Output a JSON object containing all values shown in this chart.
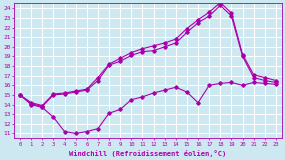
{
  "xlabel": "Windchill (Refroidissement éolien,°C)",
  "bg_color": "#cde8f0",
  "grid_color": "#ffffff",
  "line_color": "#aa00aa",
  "xlim": [
    -0.5,
    23.5
  ],
  "ylim": [
    10.5,
    24.5
  ],
  "xticks": [
    0,
    1,
    2,
    3,
    4,
    5,
    6,
    7,
    8,
    9,
    10,
    11,
    12,
    13,
    14,
    15,
    16,
    17,
    18,
    19,
    20,
    21,
    22,
    23
  ],
  "yticks": [
    11,
    12,
    13,
    14,
    15,
    16,
    17,
    18,
    19,
    20,
    21,
    22,
    23,
    24
  ],
  "line1_x": [
    0,
    1,
    2,
    3,
    4,
    5,
    6,
    7,
    8,
    9,
    10,
    11,
    12,
    13,
    14,
    15,
    16,
    17,
    18,
    19,
    20,
    21,
    22,
    23
  ],
  "line1_y": [
    15.0,
    14.0,
    13.7,
    12.7,
    11.2,
    11.0,
    11.2,
    11.5,
    13.1,
    13.5,
    14.5,
    14.8,
    15.2,
    15.5,
    15.8,
    15.3,
    14.2,
    16.0,
    16.2,
    16.3,
    16.0,
    16.3,
    16.2,
    16.1
  ],
  "line2_x": [
    0,
    1,
    2,
    3,
    4,
    5,
    6,
    7,
    8,
    9,
    10,
    11,
    12,
    13,
    14,
    15,
    16,
    17,
    18,
    19,
    20,
    21,
    22,
    23
  ],
  "line2_y": [
    15.0,
    14.1,
    13.8,
    15.0,
    15.1,
    15.3,
    15.5,
    16.5,
    18.1,
    18.5,
    19.1,
    19.5,
    19.6,
    20.0,
    20.4,
    21.5,
    22.5,
    23.2,
    24.3,
    23.2,
    19.0,
    16.8,
    16.5,
    16.3
  ],
  "line3_x": [
    0,
    1,
    2,
    3,
    4,
    5,
    6,
    7,
    8,
    9,
    10,
    11,
    12,
    13,
    14,
    15,
    16,
    17,
    18,
    19,
    20,
    21,
    22,
    23
  ],
  "line3_y": [
    15.0,
    14.2,
    13.9,
    15.1,
    15.2,
    15.4,
    15.6,
    16.8,
    18.2,
    18.8,
    19.4,
    19.8,
    20.1,
    20.4,
    20.8,
    21.9,
    22.8,
    23.6,
    24.6,
    23.5,
    19.2,
    17.1,
    16.8,
    16.5
  ]
}
